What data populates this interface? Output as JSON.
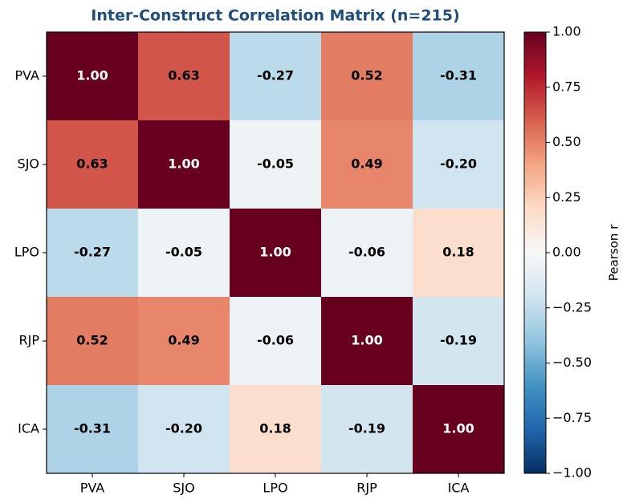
{
  "chart_data": {
    "type": "heatmap",
    "title": "Inter-Construct Correlation Matrix (n=215)",
    "x_categories": [
      "PVA",
      "SJO",
      "LPO",
      "RJP",
      "ICA"
    ],
    "y_categories": [
      "PVA",
      "SJO",
      "LPO",
      "RJP",
      "ICA"
    ],
    "values": [
      [
        1,
        0.63,
        -0.27,
        0.52,
        -0.31
      ],
      [
        0.63,
        1,
        -0.05,
        0.49,
        -0.2
      ],
      [
        -0.27,
        -0.05,
        1,
        -0.06,
        0.18
      ],
      [
        0.52,
        0.49,
        -0.06,
        1,
        -0.19
      ],
      [
        -0.31,
        -0.2,
        0.18,
        -0.19,
        1
      ]
    ],
    "value_labels": [
      [
        "1.00",
        "0.63",
        "-0.27",
        "0.52",
        "-0.31"
      ],
      [
        "0.63",
        "1.00",
        "-0.05",
        "0.49",
        "-0.20"
      ],
      [
        "-0.27",
        "-0.05",
        "1.00",
        "-0.06",
        "0.18"
      ],
      [
        "0.52",
        "0.49",
        "-0.06",
        "1.00",
        "-0.19"
      ],
      [
        "-0.31",
        "-0.20",
        "0.18",
        "-0.19",
        "1.00"
      ]
    ],
    "colorscale": [
      "#053061",
      "#2166ac",
      "#4393c3",
      "#92c5de",
      "#d1e5f0",
      "#f7f7f7",
      "#fddbc7",
      "#f4a582",
      "#d6604d",
      "#b2182b",
      "#67001f"
    ],
    "zlim": [
      -1,
      1
    ],
    "colorbar_label": "Pearson r",
    "colorbar_ticks": [
      {
        "value": 1,
        "label": "1.00"
      },
      {
        "value": 0.75,
        "label": "0.75"
      },
      {
        "value": 0.5,
        "label": "0.50"
      },
      {
        "value": 0.25,
        "label": "0.25"
      },
      {
        "value": 0,
        "label": "0.00"
      },
      {
        "value": -0.25,
        "label": "−0.25"
      },
      {
        "value": -0.5,
        "label": "−0.50"
      },
      {
        "value": -0.75,
        "label": "−0.75"
      },
      {
        "value": -1,
        "label": "−1.00"
      }
    ]
  }
}
